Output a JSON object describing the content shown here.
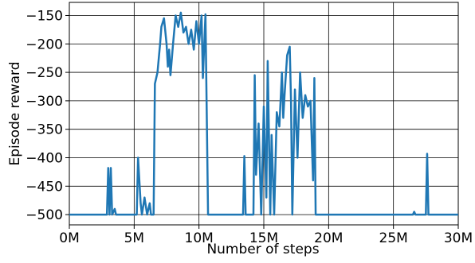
{
  "chart_data": {
    "type": "line",
    "xlabel": "Number of steps",
    "ylabel": "Episode reward",
    "xlim": [
      0,
      30000000
    ],
    "ylim": [
      -518,
      -127
    ],
    "xticks": [
      {
        "value": 0,
        "label": "0M"
      },
      {
        "value": 5000000,
        "label": "5M"
      },
      {
        "value": 10000000,
        "label": "10M"
      },
      {
        "value": 15000000,
        "label": "15M"
      },
      {
        "value": 20000000,
        "label": "20M"
      },
      {
        "value": 25000000,
        "label": "25M"
      },
      {
        "value": 30000000,
        "label": "30M"
      }
    ],
    "yticks": [
      {
        "value": -500,
        "label": "−500"
      },
      {
        "value": -450,
        "label": "−450"
      },
      {
        "value": -400,
        "label": "−400"
      },
      {
        "value": -350,
        "label": "−350"
      },
      {
        "value": -300,
        "label": "−300"
      },
      {
        "value": -250,
        "label": "−250"
      },
      {
        "value": -200,
        "label": "−200"
      },
      {
        "value": -150,
        "label": "−150"
      }
    ],
    "grid": true,
    "series": [
      {
        "color": "#1f77b4",
        "x": [
          0,
          2900000,
          3000000,
          3100000,
          3200000,
          3300000,
          3500000,
          3600000,
          5200000,
          5300000,
          5500000,
          5600000,
          5800000,
          6000000,
          6200000,
          6300000,
          6500000,
          6600000,
          6800000,
          7000000,
          7100000,
          7300000,
          7500000,
          7600000,
          7700000,
          7800000,
          8000000,
          8200000,
          8400000,
          8600000,
          8800000,
          9000000,
          9200000,
          9400000,
          9600000,
          9800000,
          10000000,
          10200000,
          10300000,
          10500000,
          10700000,
          13400000,
          13500000,
          13600000,
          14200000,
          14300000,
          14400000,
          14600000,
          14800000,
          15000000,
          15200000,
          15300000,
          15500000,
          15600000,
          15800000,
          16000000,
          16200000,
          16400000,
          16500000,
          16600000,
          16800000,
          17000000,
          17100000,
          17200000,
          17400000,
          17600000,
          17800000,
          18000000,
          18200000,
          18400000,
          18600000,
          18800000,
          18900000,
          19000000,
          26500000,
          26600000,
          26700000,
          27500000,
          27600000,
          27700000,
          30000000
        ],
        "values": [
          -500,
          -500,
          -418,
          -500,
          -418,
          -500,
          -490,
          -500,
          -500,
          -400,
          -480,
          -500,
          -470,
          -500,
          -480,
          -500,
          -500,
          -270,
          -250,
          -200,
          -170,
          -155,
          -200,
          -240,
          -210,
          -255,
          -200,
          -150,
          -170,
          -145,
          -180,
          -170,
          -200,
          -175,
          -210,
          -160,
          -200,
          -150,
          -260,
          -148,
          -500,
          -500,
          -397,
          -500,
          -500,
          -255,
          -430,
          -340,
          -500,
          -310,
          -470,
          -230,
          -500,
          -360,
          -500,
          -320,
          -345,
          -250,
          -330,
          -290,
          -220,
          -205,
          -300,
          -500,
          -280,
          -400,
          -250,
          -330,
          -290,
          -310,
          -300,
          -440,
          -260,
          -500,
          -500,
          -495,
          -500,
          -500,
          -393,
          -500,
          -500
        ]
      }
    ]
  }
}
